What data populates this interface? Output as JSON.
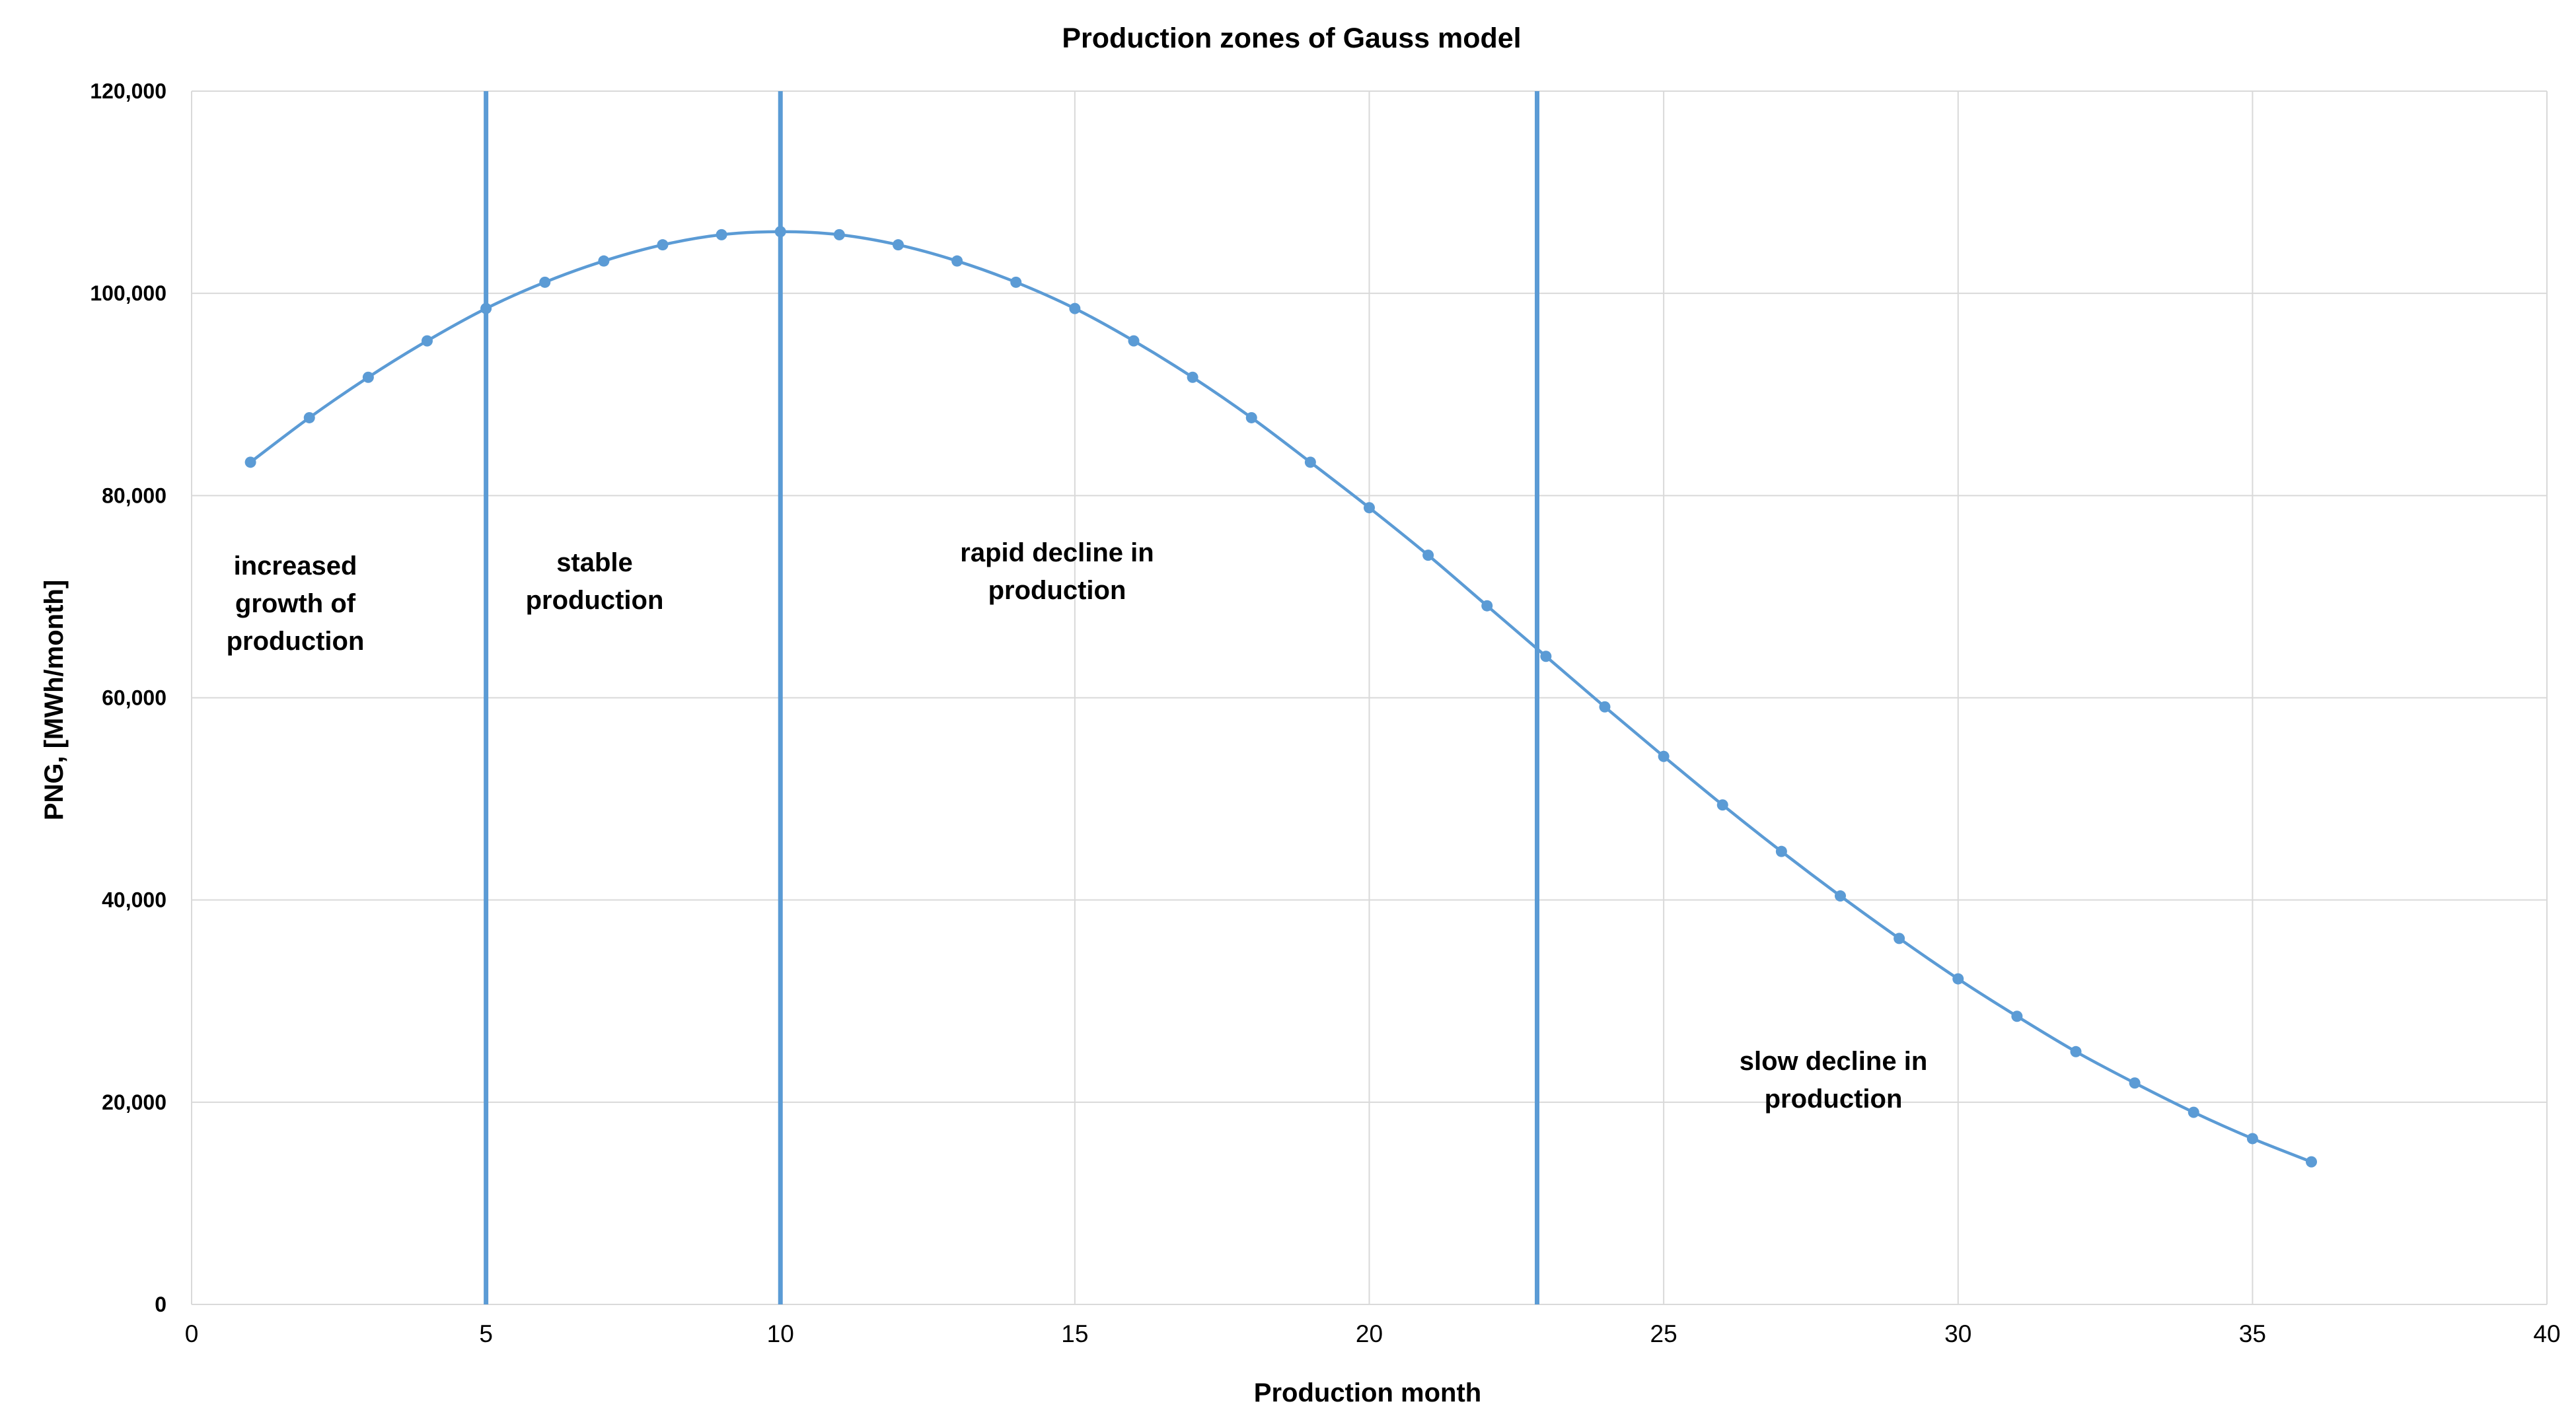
{
  "chart_data": {
    "type": "line",
    "title": "Production  zones of Gauss  model",
    "xlabel": "Production month",
    "ylabel": "PNG, [MWh/month]",
    "xlim": [
      0,
      40
    ],
    "ylim": [
      0,
      120000
    ],
    "x_ticks": [
      0,
      5,
      10,
      15,
      20,
      25,
      30,
      35,
      40
    ],
    "y_ticks": [
      0,
      20000,
      40000,
      60000,
      80000,
      100000,
      120000
    ],
    "x_tick_labels": [
      "0",
      "5",
      "10",
      "15",
      "20",
      "25",
      "30",
      "35",
      "40"
    ],
    "y_tick_labels": [
      "0",
      "20,000",
      "40,000",
      "60,000",
      "80,000",
      "100,000",
      "120,000"
    ],
    "grid": true,
    "series": [
      {
        "color": "#5b9bd5",
        "x": [
          1,
          2,
          3,
          4,
          5,
          6,
          7,
          8,
          9,
          10,
          11,
          12,
          13,
          14,
          15,
          16,
          17,
          18,
          19,
          20,
          21,
          22,
          23,
          24,
          25,
          26,
          27,
          28,
          29,
          30,
          31,
          32,
          33,
          34,
          35,
          36
        ],
        "y": [
          83300,
          87700,
          91700,
          95300,
          98500,
          101100,
          103200,
          104800,
          105800,
          106100,
          105800,
          104800,
          103200,
          101100,
          98500,
          95300,
          91700,
          87700,
          83300,
          78800,
          74100,
          69100,
          64100,
          59100,
          54200,
          49400,
          44800,
          40400,
          36200,
          32200,
          28500,
          25000,
          21900,
          19000,
          16400,
          14100
        ]
      }
    ],
    "vlines": {
      "x": [
        5,
        10,
        22.85
      ],
      "color": "#5b9bd5"
    },
    "zones": [
      {
        "lines": [
          "increased",
          "growth of",
          "production"
        ]
      },
      {
        "lines": [
          "stable",
          "production"
        ]
      },
      {
        "lines": [
          "rapid decline in",
          "production"
        ]
      },
      {
        "lines": [
          "slow decline in",
          "production"
        ]
      }
    ]
  }
}
